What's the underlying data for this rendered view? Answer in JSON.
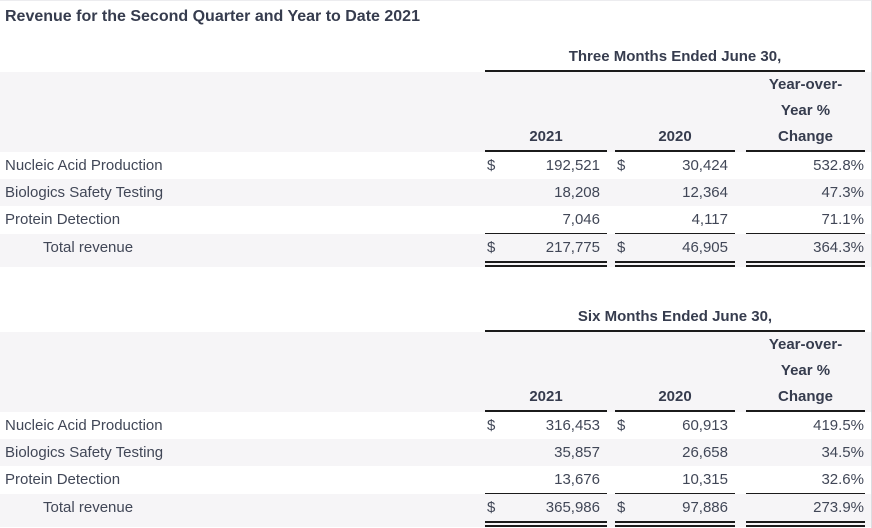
{
  "page": {
    "title": "Revenue for the Second Quarter and Year to Date 2021"
  },
  "colors": {
    "body_text": "#414757",
    "heading_text": "#363c4e",
    "stripe_background": "#f6f5f7",
    "rule_line": "#1b1b1b",
    "background": "#ffffff"
  },
  "tables": [
    {
      "period_header": "Three Months Ended June 30,",
      "columns": {
        "y2021": "2021",
        "y2020": "2020",
        "yoy1": "Year-over-",
        "yoy2": "Year %",
        "yoy3": "Change"
      },
      "rows": [
        {
          "label": "Nucleic Acid Production",
          "cur2021": "$",
          "v2021": "192,521",
          "cur2020": "$",
          "v2020": "30,424",
          "change": "532.8%"
        },
        {
          "label": "Biologics Safety Testing",
          "cur2021": "",
          "v2021": "18,208",
          "cur2020": "",
          "v2020": "12,364",
          "change": "47.3%"
        },
        {
          "label": "Protein Detection",
          "cur2021": "",
          "v2021": "7,046",
          "cur2020": "",
          "v2020": "4,117",
          "change": "71.1%"
        }
      ],
      "total": {
        "label": "Total revenue",
        "cur2021": "$",
        "v2021": "217,775",
        "cur2020": "$",
        "v2020": "46,905",
        "change": "364.3%"
      }
    },
    {
      "period_header": "Six Months Ended June 30,",
      "columns": {
        "y2021": "2021",
        "y2020": "2020",
        "yoy1": "Year-over-",
        "yoy2": "Year %",
        "yoy3": "Change"
      },
      "rows": [
        {
          "label": "Nucleic Acid Production",
          "cur2021": "$",
          "v2021": "316,453",
          "cur2020": "$",
          "v2020": "60,913",
          "change": "419.5%"
        },
        {
          "label": "Biologics Safety Testing",
          "cur2021": "",
          "v2021": "35,857",
          "cur2020": "",
          "v2020": "26,658",
          "change": "34.5%"
        },
        {
          "label": "Protein Detection",
          "cur2021": "",
          "v2021": "13,676",
          "cur2020": "",
          "v2020": "10,315",
          "change": "32.6%"
        }
      ],
      "total": {
        "label": "Total revenue",
        "cur2021": "$",
        "v2021": "365,986",
        "cur2020": "$",
        "v2020": "97,886",
        "change": "273.9%"
      }
    }
  ]
}
